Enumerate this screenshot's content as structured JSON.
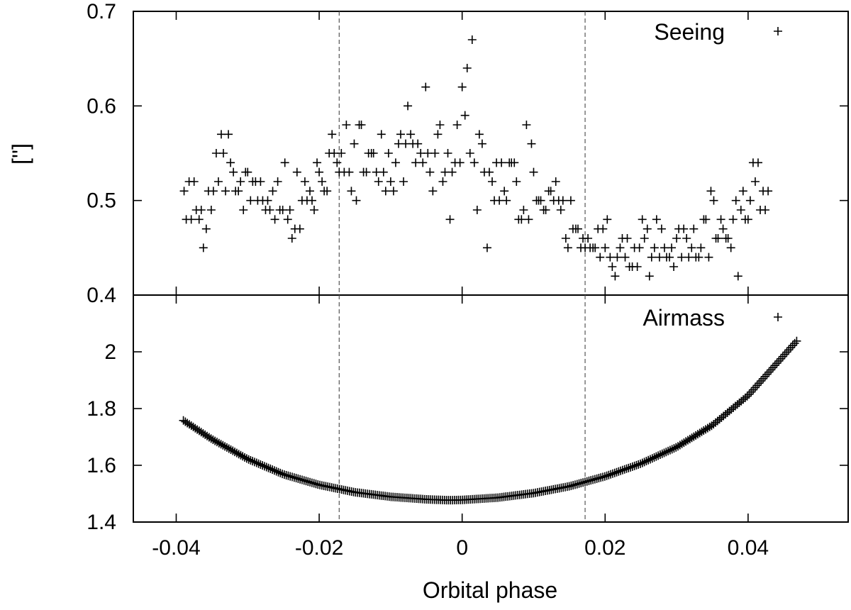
{
  "chart_data": [
    {
      "id": "seeing",
      "type": "scatter",
      "marker": "+",
      "legend": "Seeing",
      "legend_position": "top-right",
      "ylabel": "['']",
      "xlim": [
        -0.046,
        0.054
      ],
      "ylim": [
        0.4,
        0.7
      ],
      "yticks": [
        0.4,
        0.5,
        0.6,
        0.7
      ],
      "ytick_labels": [
        "0.4",
        "0.5",
        "0.6",
        "0.7"
      ],
      "points": [
        [
          -0.0389,
          0.51
        ],
        [
          -0.0386,
          0.48
        ],
        [
          -0.0382,
          0.52
        ],
        [
          -0.0379,
          0.48
        ],
        [
          -0.0375,
          0.52
        ],
        [
          -0.0372,
          0.49
        ],
        [
          -0.0368,
          0.48
        ],
        [
          -0.0365,
          0.49
        ],
        [
          -0.0362,
          0.45
        ],
        [
          -0.0358,
          0.47
        ],
        [
          -0.0355,
          0.51
        ],
        [
          -0.0351,
          0.49
        ],
        [
          -0.0348,
          0.51
        ],
        [
          -0.0344,
          0.55
        ],
        [
          -0.0341,
          0.52
        ],
        [
          -0.0337,
          0.57
        ],
        [
          -0.0334,
          0.55
        ],
        [
          -0.0331,
          0.51
        ],
        [
          -0.0327,
          0.57
        ],
        [
          -0.0324,
          0.54
        ],
        [
          -0.032,
          0.53
        ],
        [
          -0.0317,
          0.51
        ],
        [
          -0.0313,
          0.51
        ],
        [
          -0.031,
          0.52
        ],
        [
          -0.0306,
          0.49
        ],
        [
          -0.0303,
          0.53
        ],
        [
          -0.03,
          0.53
        ],
        [
          -0.0296,
          0.5
        ],
        [
          -0.0293,
          0.52
        ],
        [
          -0.0289,
          0.52
        ],
        [
          -0.0286,
          0.5
        ],
        [
          -0.0282,
          0.52
        ],
        [
          -0.0279,
          0.5
        ],
        [
          -0.0275,
          0.49
        ],
        [
          -0.0272,
          0.5
        ],
        [
          -0.0269,
          0.49
        ],
        [
          -0.0265,
          0.51
        ],
        [
          -0.0262,
          0.48
        ],
        [
          -0.0258,
          0.52
        ],
        [
          -0.0255,
          0.49
        ],
        [
          -0.0251,
          0.49
        ],
        [
          -0.0248,
          0.54
        ],
        [
          -0.0244,
          0.48
        ],
        [
          -0.0241,
          0.49
        ],
        [
          -0.0238,
          0.46
        ],
        [
          -0.0234,
          0.47
        ],
        [
          -0.0231,
          0.53
        ],
        [
          -0.0227,
          0.47
        ],
        [
          -0.0224,
          0.5
        ],
        [
          -0.022,
          0.52
        ],
        [
          -0.0217,
          0.5
        ],
        [
          -0.0213,
          0.51
        ],
        [
          -0.021,
          0.5
        ],
        [
          -0.0207,
          0.49
        ],
        [
          -0.0203,
          0.54
        ],
        [
          -0.02,
          0.53
        ],
        [
          -0.0196,
          0.52
        ],
        [
          -0.0193,
          0.51
        ],
        [
          -0.0189,
          0.51
        ],
        [
          -0.0186,
          0.55
        ],
        [
          -0.0182,
          0.57
        ],
        [
          -0.0179,
          0.55
        ],
        [
          -0.0175,
          0.54
        ],
        [
          -0.0172,
          0.53
        ],
        [
          -0.0169,
          0.55
        ],
        [
          -0.0165,
          0.53
        ],
        [
          -0.0162,
          0.58
        ],
        [
          -0.0158,
          0.53
        ],
        [
          -0.0155,
          0.51
        ],
        [
          -0.0151,
          0.56
        ],
        [
          -0.0148,
          0.5
        ],
        [
          -0.0144,
          0.58
        ],
        [
          -0.0141,
          0.58
        ],
        [
          -0.0138,
          0.53
        ],
        [
          -0.0134,
          0.53
        ],
        [
          -0.0131,
          0.55
        ],
        [
          -0.0127,
          0.55
        ],
        [
          -0.0124,
          0.55
        ],
        [
          -0.012,
          0.53
        ],
        [
          -0.0117,
          0.52
        ],
        [
          -0.0113,
          0.57
        ],
        [
          -0.011,
          0.53
        ],
        [
          -0.0107,
          0.51
        ],
        [
          -0.0103,
          0.55
        ],
        [
          -0.01,
          0.52
        ],
        [
          -0.0096,
          0.51
        ],
        [
          -0.0093,
          0.54
        ],
        [
          -0.0089,
          0.56
        ],
        [
          -0.0086,
          0.57
        ],
        [
          -0.0082,
          0.52
        ],
        [
          -0.0079,
          0.56
        ],
        [
          -0.0076,
          0.6
        ],
        [
          -0.0072,
          0.57
        ],
        [
          -0.0069,
          0.56
        ],
        [
          -0.0065,
          0.54
        ],
        [
          -0.0062,
          0.56
        ],
        [
          -0.0058,
          0.55
        ],
        [
          -0.0055,
          0.54
        ],
        [
          -0.0051,
          0.62
        ],
        [
          -0.0048,
          0.55
        ],
        [
          -0.0045,
          0.53
        ],
        [
          -0.0041,
          0.51
        ],
        [
          -0.0038,
          0.55
        ],
        [
          -0.0034,
          0.57
        ],
        [
          -0.0031,
          0.58
        ],
        [
          -0.0027,
          0.52
        ],
        [
          -0.0024,
          0.53
        ],
        [
          -0.002,
          0.55
        ],
        [
          -0.0017,
          0.48
        ],
        [
          -0.0014,
          0.53
        ],
        [
          -0.001,
          0.54
        ],
        [
          -0.0007,
          0.58
        ],
        [
          -0.0003,
          0.54
        ],
        [
          0.0,
          0.62
        ],
        [
          0.0004,
          0.59
        ],
        [
          0.0007,
          0.64
        ],
        [
          0.0011,
          0.55
        ],
        [
          0.0014,
          0.67
        ],
        [
          0.0017,
          0.54
        ],
        [
          0.0021,
          0.49
        ],
        [
          0.0024,
          0.57
        ],
        [
          0.0028,
          0.56
        ],
        [
          0.0031,
          0.53
        ],
        [
          0.0035,
          0.45
        ],
        [
          0.0038,
          0.53
        ],
        [
          0.0042,
          0.52
        ],
        [
          0.0045,
          0.5
        ],
        [
          0.0048,
          0.54
        ],
        [
          0.0052,
          0.5
        ],
        [
          0.0055,
          0.54
        ],
        [
          0.0059,
          0.51
        ],
        [
          0.0062,
          0.5
        ],
        [
          0.0066,
          0.54
        ],
        [
          0.0069,
          0.54
        ],
        [
          0.0073,
          0.54
        ],
        [
          0.0076,
          0.52
        ],
        [
          0.0079,
          0.48
        ],
        [
          0.0083,
          0.48
        ],
        [
          0.0086,
          0.49
        ],
        [
          0.009,
          0.58
        ],
        [
          0.0093,
          0.48
        ],
        [
          0.0097,
          0.56
        ],
        [
          0.01,
          0.53
        ],
        [
          0.0104,
          0.5
        ],
        [
          0.0107,
          0.5
        ],
        [
          0.011,
          0.5
        ],
        [
          0.0114,
          0.49
        ],
        [
          0.0117,
          0.49
        ],
        [
          0.0121,
          0.51
        ],
        [
          0.0124,
          0.51
        ],
        [
          0.0128,
          0.5
        ],
        [
          0.0131,
          0.52
        ],
        [
          0.0135,
          0.5
        ],
        [
          0.0138,
          0.49
        ],
        [
          0.0141,
          0.5
        ],
        [
          0.0145,
          0.46
        ],
        [
          0.0148,
          0.45
        ],
        [
          0.0152,
          0.5
        ],
        [
          0.0155,
          0.47
        ],
        [
          0.0159,
          0.47
        ],
        [
          0.0162,
          0.47
        ],
        [
          0.0166,
          0.45
        ],
        [
          0.0169,
          0.46
        ],
        [
          0.0172,
          0.45
        ],
        [
          0.0176,
          0.46
        ],
        [
          0.0179,
          0.45
        ],
        [
          0.0183,
          0.45
        ],
        [
          0.0186,
          0.45
        ],
        [
          0.019,
          0.47
        ],
        [
          0.0193,
          0.44
        ],
        [
          0.0197,
          0.47
        ],
        [
          0.02,
          0.45
        ],
        [
          0.0203,
          0.48
        ],
        [
          0.0207,
          0.44
        ],
        [
          0.021,
          0.43
        ],
        [
          0.0214,
          0.42
        ],
        [
          0.0217,
          0.44
        ],
        [
          0.0221,
          0.45
        ],
        [
          0.0224,
          0.46
        ],
        [
          0.0228,
          0.44
        ],
        [
          0.0231,
          0.46
        ],
        [
          0.0234,
          0.43
        ],
        [
          0.0238,
          0.43
        ],
        [
          0.0241,
          0.45
        ],
        [
          0.0245,
          0.43
        ],
        [
          0.0248,
          0.45
        ],
        [
          0.0252,
          0.48
        ],
        [
          0.0255,
          0.46
        ],
        [
          0.0259,
          0.47
        ],
        [
          0.0262,
          0.42
        ],
        [
          0.0265,
          0.44
        ],
        [
          0.0269,
          0.45
        ],
        [
          0.0272,
          0.48
        ],
        [
          0.0276,
          0.44
        ],
        [
          0.0279,
          0.47
        ],
        [
          0.0283,
          0.45
        ],
        [
          0.0286,
          0.44
        ],
        [
          0.029,
          0.44
        ],
        [
          0.0293,
          0.45
        ],
        [
          0.0296,
          0.43
        ],
        [
          0.03,
          0.46
        ],
        [
          0.0303,
          0.47
        ],
        [
          0.0307,
          0.44
        ],
        [
          0.031,
          0.47
        ],
        [
          0.0314,
          0.46
        ],
        [
          0.0317,
          0.44
        ],
        [
          0.0321,
          0.45
        ],
        [
          0.0324,
          0.47
        ],
        [
          0.0327,
          0.44
        ],
        [
          0.0331,
          0.44
        ],
        [
          0.0334,
          0.45
        ],
        [
          0.0338,
          0.48
        ],
        [
          0.0341,
          0.48
        ],
        [
          0.0345,
          0.44
        ],
        [
          0.0348,
          0.51
        ],
        [
          0.0352,
          0.5
        ],
        [
          0.0355,
          0.46
        ],
        [
          0.0358,
          0.46
        ],
        [
          0.0362,
          0.48
        ],
        [
          0.0365,
          0.47
        ],
        [
          0.0369,
          0.46
        ],
        [
          0.0372,
          0.46
        ],
        [
          0.0376,
          0.45
        ],
        [
          0.0379,
          0.48
        ],
        [
          0.0383,
          0.5
        ],
        [
          0.0386,
          0.42
        ],
        [
          0.039,
          0.49
        ],
        [
          0.0393,
          0.51
        ],
        [
          0.0396,
          0.48
        ],
        [
          0.04,
          0.48
        ],
        [
          0.0403,
          0.5
        ],
        [
          0.0407,
          0.54
        ],
        [
          0.041,
          0.52
        ],
        [
          0.0414,
          0.54
        ],
        [
          0.0417,
          0.49
        ],
        [
          0.0421,
          0.51
        ],
        [
          0.0424,
          0.49
        ],
        [
          0.0428,
          0.51
        ]
      ]
    },
    {
      "id": "airmass",
      "type": "scatter",
      "marker": "+",
      "legend": "Airmass",
      "legend_position": "top-right",
      "xlabel": "Orbital phase",
      "xlim": [
        -0.046,
        0.054
      ],
      "ylim": [
        1.4,
        2.2
      ],
      "yticks": [
        1.4,
        1.6,
        1.8,
        2.0
      ],
      "ytick_labels": [
        "1.4",
        "1.6",
        "1.8",
        "2"
      ],
      "xticks": [
        -0.04,
        -0.02,
        0.0,
        0.02,
        0.04
      ],
      "xtick_labels": [
        "-0.04",
        "-0.02",
        "0",
        "0.02",
        "0.04"
      ],
      "x_range": [
        -0.039,
        0.0468
      ],
      "samples": [
        [
          -0.039,
          1.758
        ],
        [
          -0.035,
          1.692
        ],
        [
          -0.03,
          1.622
        ],
        [
          -0.025,
          1.568
        ],
        [
          -0.02,
          1.531
        ],
        [
          -0.015,
          1.505
        ],
        [
          -0.01,
          1.489
        ],
        [
          -0.005,
          1.48
        ],
        [
          -0.002,
          1.477
        ],
        [
          0.0,
          1.478
        ],
        [
          0.005,
          1.486
        ],
        [
          0.01,
          1.502
        ],
        [
          0.015,
          1.526
        ],
        [
          0.02,
          1.561
        ],
        [
          0.025,
          1.606
        ],
        [
          0.03,
          1.664
        ],
        [
          0.035,
          1.741
        ],
        [
          0.04,
          1.846
        ],
        [
          0.0468,
          2.038
        ]
      ]
    }
  ],
  "reference_lines_x": [
    -0.0172,
    0.0172
  ]
}
